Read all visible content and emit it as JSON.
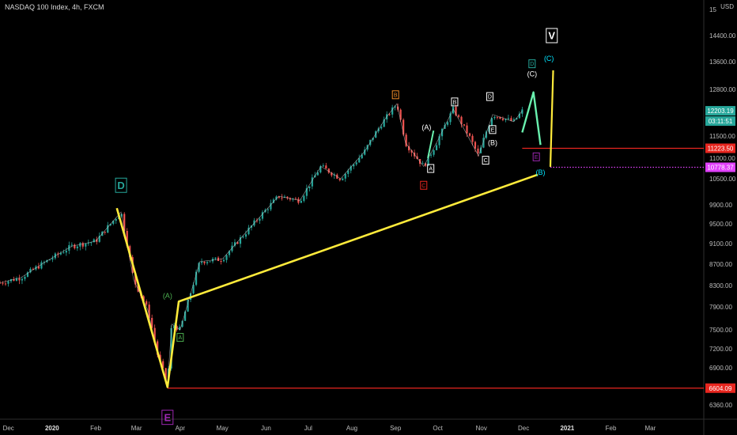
{
  "header": {
    "legend": "NASDAQ 100 Index, 4h, FXCM",
    "currency": "USD",
    "top_tick_partial": "15"
  },
  "price_boxes": [
    {
      "value": "12203.19",
      "color": "#26a69a"
    },
    {
      "value": "03:11:51",
      "color": "#26a69a"
    },
    {
      "value": "11223.50",
      "color": "#e8261f"
    },
    {
      "value": "10778.37",
      "color": "#e040fb"
    },
    {
      "value": "6604.09",
      "color": "#e8261f"
    }
  ],
  "chart_data": {
    "type": "line",
    "title": "NASDAQ 100 Index, 4h, FXCM",
    "y_ticks": [
      14400,
      13600,
      12800,
      11500,
      11000,
      10500,
      9900,
      9500,
      9100,
      8700,
      8300,
      7900,
      7500,
      7200,
      6900,
      6360
    ],
    "y_tick_labels": [
      "14400.00",
      "13600.00",
      "12800.00",
      "11500.00",
      "11000.00",
      "10500.00",
      "9900.00",
      "9500.00",
      "9100.00",
      "8700.00",
      "8300.00",
      "7900.00",
      "7500.00",
      "7200.00",
      "6900.00",
      "6360.00"
    ],
    "x_tick_labels": [
      "Dec",
      "2020",
      "Feb",
      "Mar",
      "Apr",
      "May",
      "Jun",
      "Jul",
      "Aug",
      "Sep",
      "Oct",
      "Nov",
      "Dec",
      "2021",
      "Feb",
      "Mar"
    ],
    "x_tick_dates": [
      "2019-12-01",
      "2020-01-01",
      "2020-02-01",
      "2020-03-01",
      "2020-04-01",
      "2020-05-01",
      "2020-06-01",
      "2020-07-01",
      "2020-08-01",
      "2020-09-01",
      "2020-10-01",
      "2020-11-01",
      "2020-12-01",
      "2021-01-01",
      "2021-02-01",
      "2021-03-01"
    ],
    "x_range": [
      "2019-11-25",
      "2021-04-08"
    ],
    "series": [
      {
        "values": [
          [
            "2019-11-25",
            8350
          ],
          [
            "2019-12-10",
            8450
          ],
          [
            "2019-12-27",
            8740
          ],
          [
            "2020-01-15",
            9050
          ],
          [
            "2020-02-01",
            9150
          ],
          [
            "2020-02-19",
            9750
          ],
          [
            "2020-02-28",
            8400
          ],
          [
            "2020-03-09",
            7850
          ],
          [
            "2020-03-16",
            7100
          ],
          [
            "2020-03-23",
            6650
          ],
          [
            "2020-03-26",
            7600
          ],
          [
            "2020-04-01",
            7500
          ],
          [
            "2020-04-15",
            8750
          ],
          [
            "2020-05-01",
            8800
          ],
          [
            "2020-05-20",
            9400
          ],
          [
            "2020-06-10",
            10100
          ],
          [
            "2020-06-25",
            10000
          ],
          [
            "2020-07-10",
            10800
          ],
          [
            "2020-07-24",
            10500
          ],
          [
            "2020-08-10",
            11150
          ],
          [
            "2020-08-25",
            12000
          ],
          [
            "2020-09-02",
            12400
          ],
          [
            "2020-09-08",
            11350
          ],
          [
            "2020-09-21",
            10800
          ],
          [
            "2020-10-01",
            11400
          ],
          [
            "2020-10-12",
            12250
          ],
          [
            "2020-10-30",
            11050
          ],
          [
            "2020-11-09",
            12100
          ],
          [
            "2020-11-24",
            11900
          ],
          [
            "2020-11-30",
            12200
          ]
        ]
      }
    ],
    "wave_labels": [
      {
        "text": "D",
        "date": "2020-02-19",
        "value": 10350,
        "color": "#26a69a"
      },
      {
        "text": "E",
        "date": "2020-03-23",
        "value": 6180,
        "color": "#9c27b0"
      },
      {
        "text": "(A)",
        "date": "2020-03-23",
        "value": 8110,
        "color": "#4caf50"
      },
      {
        "text": "A",
        "date": "2020-04-01",
        "value": 7380,
        "color": "#4caf50"
      },
      {
        "text": "B",
        "date": "2020-09-01",
        "value": 12650,
        "color": "#f28c28"
      },
      {
        "text": "C",
        "date": "2020-09-21",
        "value": 10350,
        "color": "#e8261f"
      },
      {
        "text": "(A)",
        "date": "2020-09-23",
        "value": 11750,
        "color": "#ffffff"
      },
      {
        "text": "A",
        "date": "2020-09-26",
        "value": 10750,
        "color": "#ffffff"
      },
      {
        "text": "B",
        "date": "2020-10-13",
        "value": 12450,
        "color": "#ffffff"
      },
      {
        "text": "D",
        "date": "2020-11-07",
        "value": 12600,
        "color": "#ffffff"
      },
      {
        "text": "C",
        "date": "2020-11-04",
        "value": 10950,
        "color": "#ffffff"
      },
      {
        "text": "E",
        "date": "2020-11-09",
        "value": 11680,
        "color": "#ffffff"
      },
      {
        "text": "(B)",
        "date": "2020-11-09",
        "value": 11350,
        "color": "#ffffff"
      },
      {
        "text": "D",
        "date": "2020-12-07",
        "value": 13540,
        "color": "#26a69a"
      },
      {
        "text": "(C)",
        "date": "2020-12-07",
        "value": 13250,
        "color": "#ffffff"
      },
      {
        "text": "E",
        "date": "2020-12-10",
        "value": 11030,
        "color": "#9c27b0"
      },
      {
        "text": "(B)",
        "date": "2020-12-13",
        "value": 10660,
        "color": "#00e5ff"
      },
      {
        "text": "(C)",
        "date": "2020-12-19",
        "value": 13700,
        "color": "#00e5ff"
      },
      {
        "text": "V",
        "date": "2020-12-21",
        "value": 14400,
        "color": "#ffffff"
      }
    ],
    "yellow_path": [
      [
        "2020-02-16",
        9830
      ],
      [
        "2020-03-23",
        6620
      ],
      [
        "2020-03-31",
        8000
      ],
      [
        "2020-12-11",
        10600
      ]
    ],
    "yellow_projection": [
      [
        "2020-12-20",
        10790
      ],
      [
        "2020-12-22",
        13350
      ]
    ],
    "green_path": [
      [
        "2020-11-30",
        11600
      ],
      [
        "2020-12-08",
        12720
      ],
      [
        "2020-12-13",
        11300
      ]
    ],
    "green_small": [
      [
        "2020-09-24",
        11000
      ],
      [
        "2020-09-28",
        11650
      ]
    ],
    "horizontal_lines": [
      {
        "value": 11223.5,
        "start": "2020-11-30",
        "color": "#e8261f",
        "style": "solid"
      },
      {
        "value": 10778.37,
        "start": "2020-12-20",
        "color": "#e040fb",
        "style": "dotted"
      },
      {
        "value": 6604.09,
        "start": "2020-03-23",
        "color": "#e8261f",
        "style": "solid"
      }
    ]
  }
}
